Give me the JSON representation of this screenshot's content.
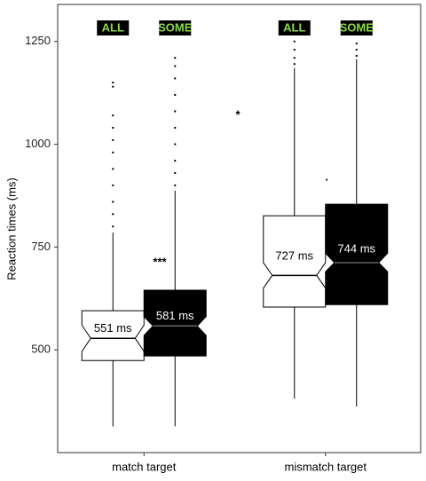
{
  "chart_data": {
    "type": "boxplot",
    "y_label": "Reaction times (ms)",
    "categories": [
      "match target",
      "mismatch target"
    ],
    "ylim": [
      250,
      1340
    ],
    "yticks": [
      500,
      750,
      1000,
      1250
    ],
    "series": [
      {
        "name": "ALL",
        "color": "#ffffff",
        "whisker_low": [
          314,
          381
        ],
        "q1": [
          474,
          604
        ],
        "median": [
          528,
          681
        ],
        "q3": [
          595,
          826
        ],
        "whisker_high": [
          785,
          1185
        ],
        "notch_low": [
          496,
          650
        ],
        "notch_high": [
          560,
          712
        ],
        "means": [
          551,
          727
        ],
        "value_labels": [
          "551 ms",
          "727 ms"
        ],
        "outliers": [
          [
            800,
            830,
            860,
            900,
            940,
            980,
            1010,
            1040,
            1070,
            1140,
            1150
          ],
          [
            1195,
            1210,
            1230,
            1250
          ]
        ]
      },
      {
        "name": "SOME",
        "color": "#000000",
        "whisker_low": [
          314,
          362
        ],
        "q1": [
          485,
          610
        ],
        "median": [
          558,
          712
        ],
        "q3": [
          645,
          854
        ],
        "whisker_high": [
          887,
          1207
        ],
        "notch_low": [
          535,
          690
        ],
        "notch_high": [
          581,
          735
        ],
        "means": [
          581,
          744
        ],
        "value_labels": [
          "581 ms",
          "744 ms"
        ],
        "outliers": [
          [
            900,
            930,
            960,
            1000,
            1040,
            1080,
            1120,
            1160,
            1190,
            1210
          ],
          [
            1215,
            1230,
            1245
          ]
        ]
      }
    ],
    "annotations": [
      "***",
      "*",
      "."
    ]
  }
}
